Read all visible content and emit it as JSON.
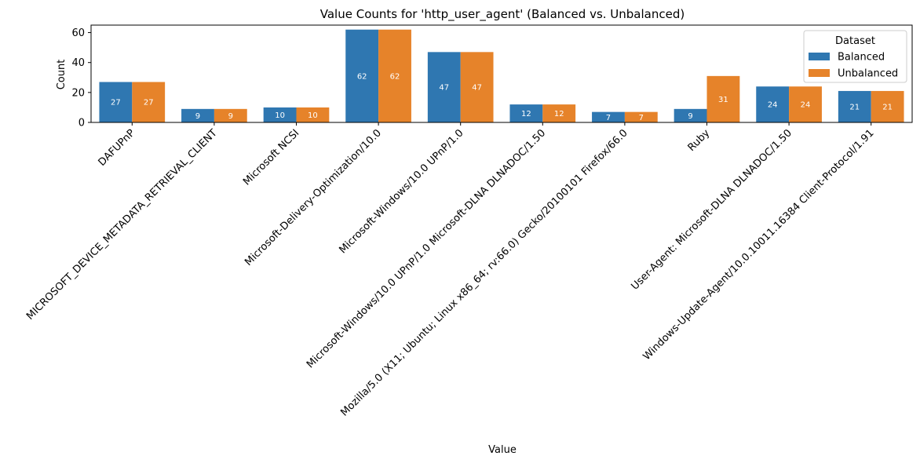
{
  "chart_data": {
    "type": "bar",
    "title": "Value Counts for 'http_user_agent' (Balanced vs. Unbalanced)",
    "xlabel": "Value",
    "ylabel": "Count",
    "ylim": [
      0,
      65
    ],
    "yticks": [
      0,
      20,
      40,
      60
    ],
    "grid": false,
    "legend": {
      "title": "Dataset",
      "position": "top-right"
    },
    "categories": [
      "DAFUPnP",
      "MICROSOFT_DEVICE_METADATA_RETRIEVAL_CLIENT",
      "Microsoft NCSI",
      "Microsoft-Delivery-Optimization/10.0",
      "Microsoft-Windows/10.0 UPnP/1.0",
      "Microsoft-Windows/10.0 UPnP/1.0 Microsoft-DLNA DLNADOC/1.50",
      "Mozilla/5.0 (X11; Ubuntu; Linux x86_64; rv:66.0) Gecko/20100101 Firefox/66.0",
      "Ruby",
      "User-Agent: Microsoft-DLNA DLNADOC/1.50",
      "Windows-Update-Agent/10.0.10011.16384 Client-Protocol/1.91"
    ],
    "series": [
      {
        "name": "Balanced",
        "color": "#2f77b1",
        "values": [
          27,
          9,
          10,
          62,
          47,
          12,
          7,
          9,
          24,
          21
        ]
      },
      {
        "name": "Unbalanced",
        "color": "#e6832a",
        "values": [
          27,
          9,
          10,
          62,
          47,
          12,
          7,
          31,
          24,
          21
        ]
      }
    ]
  }
}
